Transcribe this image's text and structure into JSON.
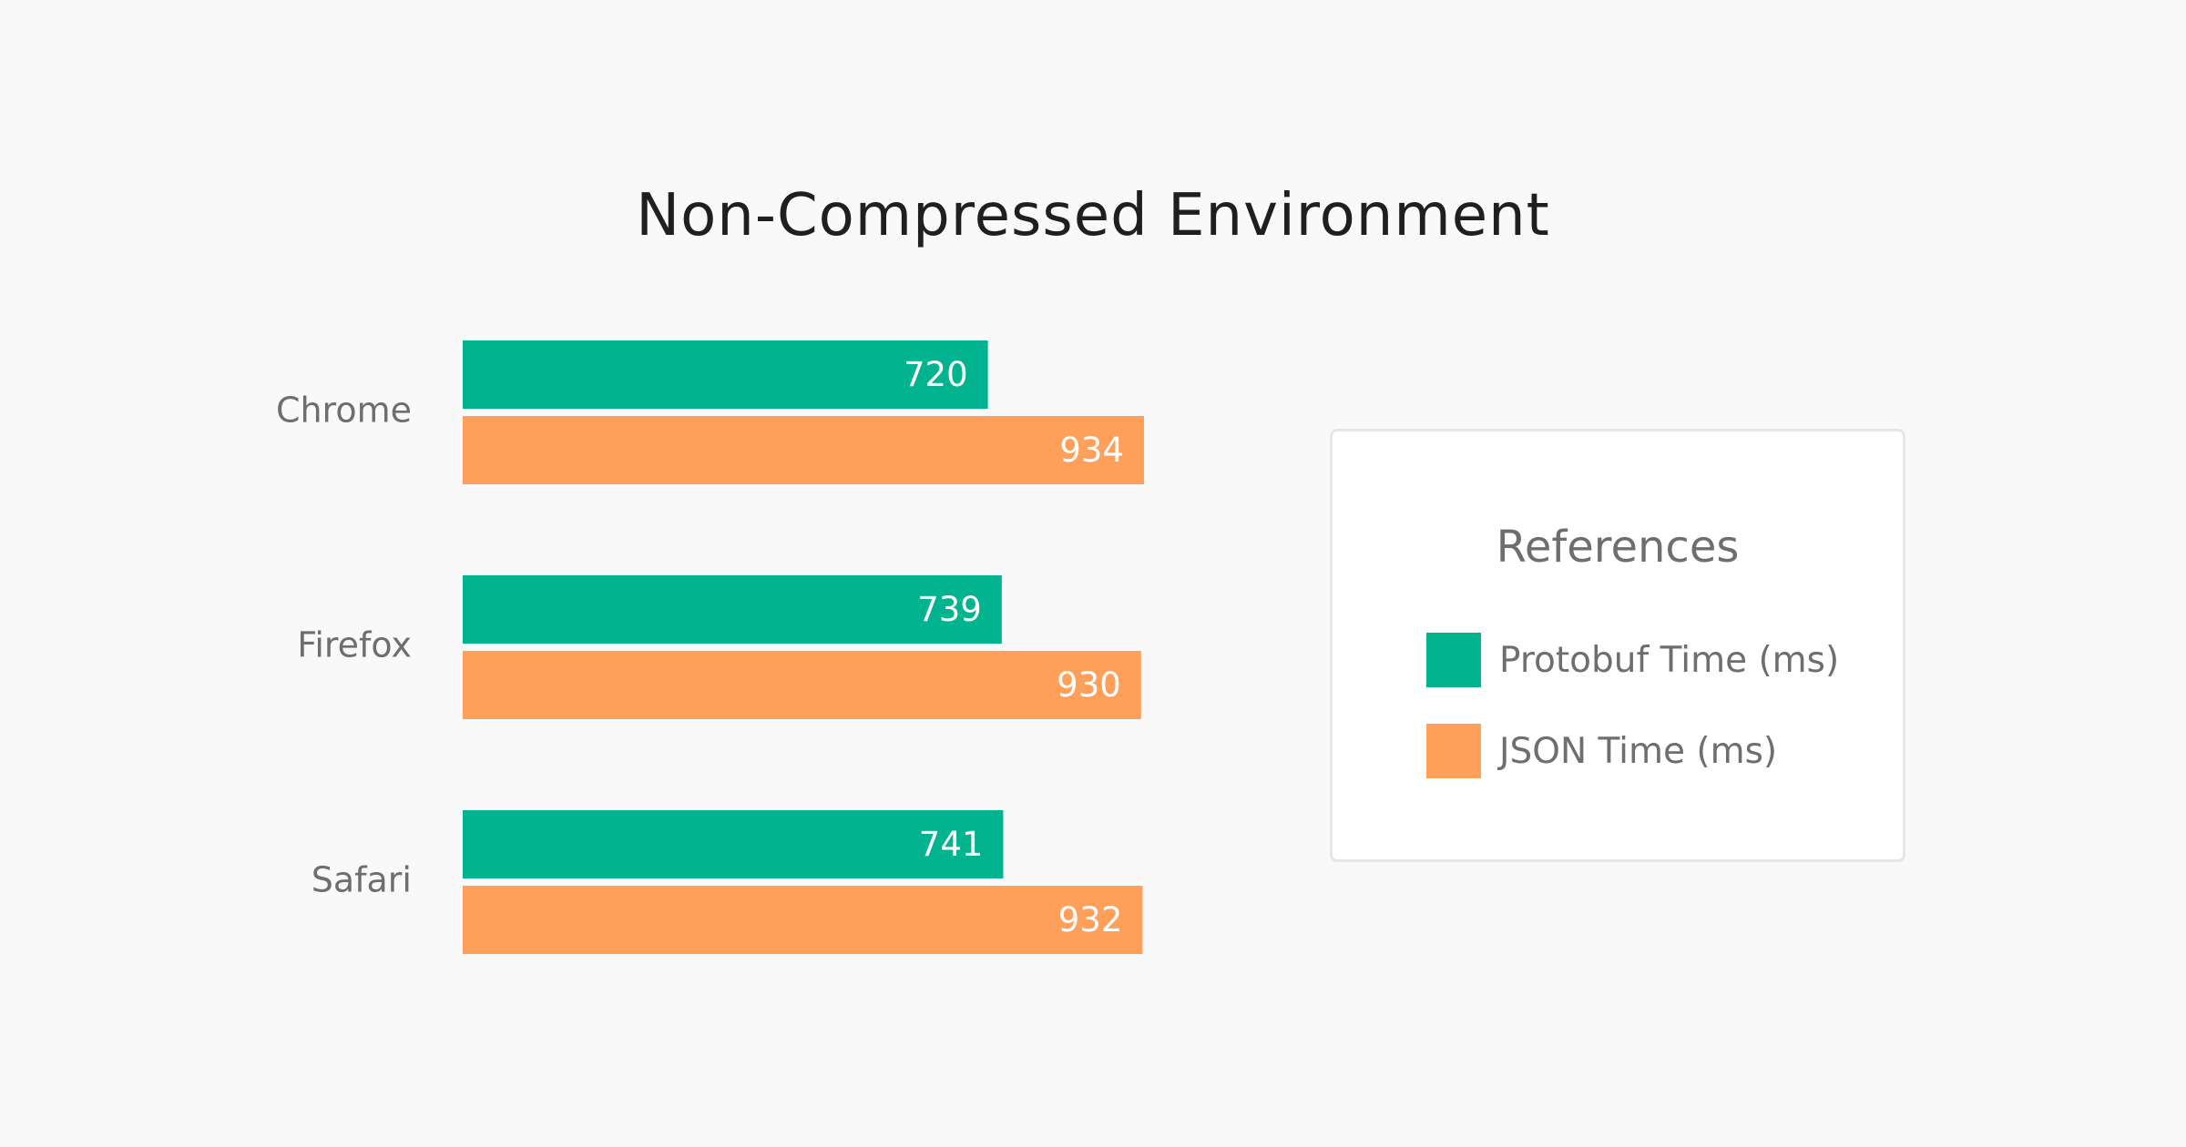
{
  "chart_data": {
    "type": "bar",
    "orientation": "horizontal",
    "title": "Non-Compressed Environment",
    "categories": [
      "Chrome",
      "Firefox",
      "Safari"
    ],
    "series": [
      {
        "name": "Protobuf Time (ms)",
        "color": "#02b38f",
        "values": [
          720,
          739,
          741
        ]
      },
      {
        "name": "JSON Time (ms)",
        "color": "#fe9f5a",
        "values": [
          934,
          930,
          932
        ]
      }
    ],
    "xlim": [
      0,
      934
    ],
    "grid": false,
    "data_labels": true,
    "legend": {
      "title": "References",
      "placement": "right"
    }
  }
}
